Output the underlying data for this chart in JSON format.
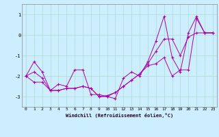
{
  "title": "",
  "xlabel": "Windchill (Refroidissement éolien,°C)",
  "ylabel": "",
  "bg_color": "#cceeff",
  "grid_color": "#aaddcc",
  "line_color": "#aa00aa",
  "xlim": [
    -0.5,
    23.5
  ],
  "ylim": [
    -3.5,
    1.5
  ],
  "xticks": [
    0,
    1,
    2,
    3,
    4,
    5,
    6,
    7,
    8,
    9,
    10,
    11,
    12,
    13,
    14,
    15,
    16,
    17,
    18,
    19,
    20,
    21,
    22,
    23
  ],
  "yticks": [
    -3,
    -2,
    -1,
    0,
    1
  ],
  "series1_x": [
    0,
    1,
    2,
    3,
    4,
    5,
    6,
    7,
    8,
    9,
    10,
    11,
    12,
    13,
    14,
    15,
    16,
    17,
    18,
    19,
    20,
    21,
    22,
    23
  ],
  "series1_y": [
    -2.0,
    -1.3,
    -1.8,
    -2.7,
    -2.4,
    -2.5,
    -1.7,
    -1.7,
    -2.9,
    -2.9,
    -3.0,
    -3.1,
    -2.1,
    -1.8,
    -2.0,
    -1.3,
    -0.3,
    0.9,
    -1.1,
    -1.8,
    0.1,
    0.9,
    0.1,
    0.1
  ],
  "series2_x": [
    0,
    1,
    2,
    3,
    4,
    5,
    6,
    7,
    8,
    9,
    10,
    11,
    12,
    13,
    14,
    15,
    16,
    17,
    18,
    19,
    20,
    21,
    22,
    23
  ],
  "series2_y": [
    -2.0,
    -1.8,
    -2.1,
    -2.7,
    -2.7,
    -2.6,
    -2.6,
    -2.5,
    -2.6,
    -3.0,
    -3.0,
    -2.8,
    -2.5,
    -2.2,
    -1.9,
    -1.4,
    -0.8,
    -0.2,
    -0.2,
    -1.0,
    -0.1,
    0.1,
    0.1,
    0.1
  ],
  "series3_x": [
    0,
    1,
    2,
    3,
    4,
    5,
    6,
    7,
    8,
    9,
    10,
    11,
    12,
    13,
    14,
    15,
    16,
    17,
    18,
    19,
    20,
    21,
    22,
    23
  ],
  "series3_y": [
    -2.0,
    -2.3,
    -2.3,
    -2.7,
    -2.7,
    -2.6,
    -2.6,
    -2.5,
    -2.6,
    -3.0,
    -2.95,
    -2.8,
    -2.5,
    -2.2,
    -1.9,
    -1.5,
    -1.4,
    -1.1,
    -2.0,
    -1.7,
    -1.7,
    0.8,
    0.1,
    0.1
  ],
  "xlabel_fontsize": 5.0,
  "tick_fontsize": 4.5
}
